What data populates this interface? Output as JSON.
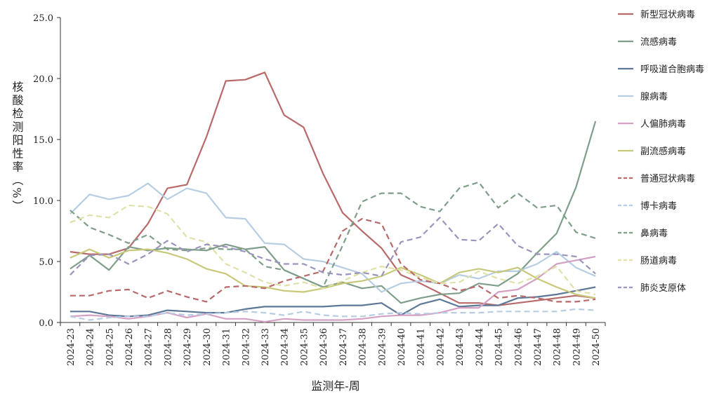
{
  "chart_data": {
    "type": "line",
    "xlabel": "监测年-周",
    "ylabel": "核酸检测阳性率（%）",
    "ylim": [
      0,
      25
    ],
    "yticks": [
      "0.0",
      "5.0",
      "10.0",
      "15.0",
      "20.0",
      "25.0"
    ],
    "grid": false,
    "legend_position": "right",
    "categories": [
      "2024-23",
      "2024-24",
      "2024-25",
      "2024-26",
      "2024-27",
      "2024-28",
      "2024-29",
      "2024-30",
      "2024-31",
      "2024-32",
      "2024-33",
      "2024-34",
      "2024-35",
      "2024-36",
      "2024-37",
      "2024-38",
      "2024-39",
      "2024-40",
      "2024-41",
      "2024-42",
      "2024-43",
      "2024-44",
      "2024-45",
      "2024-46",
      "2024-47",
      "2024-48",
      "2024-49",
      "2024-50"
    ],
    "series": [
      {
        "name": "新型冠状病毒",
        "color": "#b86a6a",
        "dash": false,
        "values": [
          5.8,
          5.6,
          5.6,
          6.1,
          8.1,
          11.0,
          11.3,
          15.2,
          19.8,
          19.9,
          20.5,
          17.0,
          16.0,
          12.2,
          9.0,
          7.5,
          6.1,
          3.9,
          3.2,
          2.4,
          1.6,
          1.6,
          1.4,
          1.6,
          1.8,
          2.0,
          2.2,
          2.0
        ]
      },
      {
        "name": "流感病毒",
        "color": "#7f9e8a",
        "dash": false,
        "values": [
          4.4,
          5.5,
          4.3,
          6.2,
          5.9,
          6.1,
          6.0,
          5.9,
          6.4,
          6.0,
          6.2,
          4.3,
          3.6,
          2.9,
          3.3,
          2.8,
          3.0,
          1.6,
          2.0,
          2.3,
          2.4,
          3.2,
          3.0,
          4.0,
          5.7,
          7.3,
          11.1,
          16.5
        ]
      },
      {
        "name": "呼吸道合胞病毒",
        "color": "#5d7897",
        "dash": false,
        "values": [
          0.9,
          0.9,
          0.6,
          0.5,
          0.6,
          1.0,
          0.9,
          0.8,
          0.8,
          1.1,
          1.3,
          1.3,
          1.3,
          1.3,
          1.4,
          1.4,
          1.6,
          0.6,
          1.5,
          1.9,
          1.3,
          1.4,
          1.4,
          2.0,
          2.1,
          2.3,
          2.6,
          2.9
        ]
      },
      {
        "name": "腺病毒",
        "color": "#b7cde3",
        "dash": false,
        "values": [
          8.9,
          10.5,
          10.1,
          10.4,
          11.4,
          10.1,
          11.0,
          10.6,
          8.6,
          8.5,
          6.5,
          6.4,
          5.2,
          5.0,
          4.5,
          4.0,
          2.5,
          3.2,
          3.4,
          3.2,
          3.9,
          3.6,
          4.2,
          4.2,
          4.8,
          5.8,
          4.5,
          3.8
        ]
      },
      {
        "name": "人偏肺病毒",
        "color": "#d4a0c4",
        "dash": false,
        "values": [
          0.5,
          0.6,
          0.5,
          0.3,
          0.5,
          0.8,
          0.4,
          0.7,
          0.3,
          0.3,
          0.05,
          0.3,
          0.2,
          0.2,
          0.2,
          0.3,
          0.5,
          0.6,
          0.6,
          0.8,
          1.2,
          1.2,
          2.5,
          2.7,
          3.6,
          4.8,
          5.1,
          5.4
        ]
      },
      {
        "name": "副流感病毒",
        "color": "#c8c87a",
        "dash": false,
        "values": [
          5.3,
          6.0,
          5.3,
          5.9,
          6.0,
          5.7,
          5.2,
          4.4,
          4.0,
          3.0,
          2.9,
          2.6,
          2.5,
          2.8,
          3.2,
          3.4,
          3.8,
          4.5,
          3.9,
          3.2,
          4.1,
          4.4,
          4.1,
          4.5,
          3.6,
          2.9,
          2.3,
          2.0
        ]
      },
      {
        "name": "普通冠状病毒",
        "color": "#b86a6a",
        "dash": true,
        "values": [
          2.2,
          2.2,
          2.6,
          2.7,
          2.0,
          2.6,
          2.1,
          1.7,
          2.9,
          3.0,
          2.8,
          3.4,
          3.8,
          4.2,
          7.5,
          8.5,
          8.1,
          4.8,
          3.5,
          3.2,
          2.6,
          3.0,
          2.0,
          2.2,
          2.0,
          1.7,
          1.7,
          1.9
        ]
      },
      {
        "name": "博卡病毒",
        "color": "#b7cde3",
        "dash": true,
        "values": [
          0.5,
          0.2,
          0.4,
          0.5,
          0.5,
          0.8,
          0.6,
          0.7,
          0.8,
          0.9,
          0.8,
          0.6,
          0.9,
          0.6,
          0.5,
          0.5,
          0.7,
          0.8,
          0.7,
          0.8,
          0.8,
          0.8,
          0.9,
          0.9,
          0.9,
          0.9,
          1.1,
          1.0
        ]
      },
      {
        "name": "鼻病毒",
        "color": "#7f9e8a",
        "dash": true,
        "values": [
          9.2,
          7.8,
          7.2,
          6.5,
          7.2,
          6.0,
          5.9,
          6.1,
          6.0,
          6.0,
          4.6,
          4.3,
          3.6,
          2.9,
          6.3,
          9.9,
          10.6,
          10.6,
          9.5,
          9.1,
          11.0,
          11.5,
          9.4,
          10.6,
          9.4,
          9.6,
          7.4,
          6.9
        ]
      },
      {
        "name": "肠道病毒",
        "color": "#e0e0a8",
        "dash": true,
        "values": [
          8.2,
          8.8,
          8.6,
          9.6,
          9.5,
          8.9,
          7.0,
          6.6,
          4.8,
          4.1,
          3.3,
          3.0,
          3.3,
          2.8,
          3.4,
          4.1,
          4.6,
          4.3,
          3.7,
          3.2,
          3.3,
          4.2,
          3.6,
          3.2,
          3.8,
          4.6,
          2.6,
          2.3
        ]
      },
      {
        "name": "肺炎支原体",
        "color": "#9c94bd",
        "dash": true,
        "values": [
          3.9,
          5.5,
          5.6,
          4.8,
          5.6,
          6.7,
          5.8,
          6.4,
          6.2,
          5.8,
          5.2,
          4.8,
          4.8,
          4.1,
          3.9,
          4.1,
          3.8,
          6.6,
          7.0,
          8.6,
          6.8,
          6.7,
          8.1,
          6.3,
          5.6,
          5.6,
          5.4,
          4.0
        ]
      }
    ]
  }
}
